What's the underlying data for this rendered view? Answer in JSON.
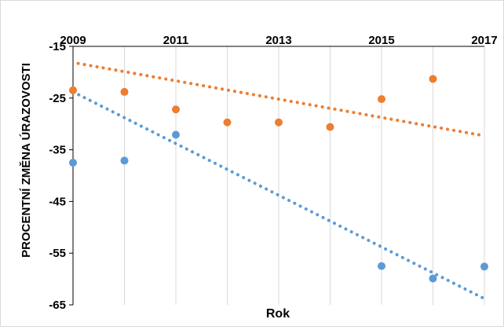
{
  "chart_data": {
    "type": "scatter",
    "title": "",
    "xlabel": "Rok",
    "ylabel": "PROCENTNÍ ZMĚNA ÚRAZOVOSTI",
    "xlim": [
      2009,
      2017
    ],
    "ylim": [
      -65,
      -15
    ],
    "x_ticks": [
      "2009",
      "2011",
      "2013",
      "2015",
      "2017"
    ],
    "y_ticks": [
      "-15",
      "-25",
      "-35",
      "-45",
      "-55",
      "-65"
    ],
    "x_axis_position": "top",
    "grid": "vertical",
    "legend": "none",
    "series": [
      {
        "color": "#ed7d31",
        "points": [
          {
            "x": 2009,
            "y": -23.5
          },
          {
            "x": 2010,
            "y": -23.8
          },
          {
            "x": 2011,
            "y": -27.2
          },
          {
            "x": 2012,
            "y": -29.7
          },
          {
            "x": 2013,
            "y": -29.7
          },
          {
            "x": 2014,
            "y": -30.6
          },
          {
            "x": 2015,
            "y": -25.2
          },
          {
            "x": 2016,
            "y": -21.3
          }
        ],
        "trendline": {
          "style": "dotted",
          "x": [
            2009.1,
            2017
          ],
          "y": [
            -18.3,
            -32.3
          ]
        }
      },
      {
        "color": "#5b9bd5",
        "points": [
          {
            "x": 2009,
            "y": -37.5
          },
          {
            "x": 2010,
            "y": -37.1
          },
          {
            "x": 2011,
            "y": -32.1
          },
          {
            "x": 2015,
            "y": -57.5
          },
          {
            "x": 2016,
            "y": -59.9
          },
          {
            "x": 2017,
            "y": -57.6
          }
        ],
        "trendline": {
          "style": "dotted",
          "x": [
            2009,
            2017
          ],
          "y": [
            -23.8,
            -63.8
          ]
        }
      }
    ]
  }
}
